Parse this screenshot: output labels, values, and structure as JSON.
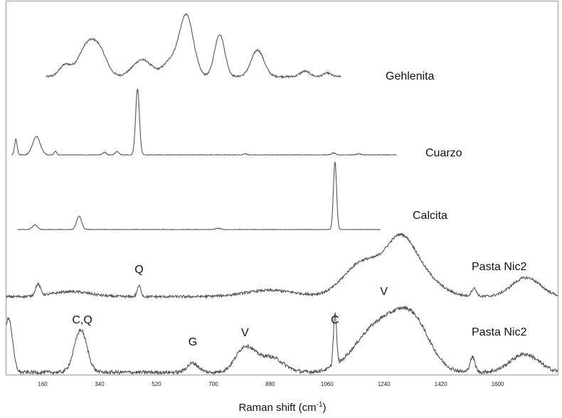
{
  "chart_data": {
    "type": "line",
    "title": "",
    "xlabel": {
      "main": "Raman shift (cm",
      "sup": "-1",
      "end": ")"
    },
    "ylabel": "",
    "xlim": [
      45,
      1790
    ],
    "x_ticks": [
      160,
      340,
      520,
      700,
      880,
      1060,
      1240,
      1420,
      1600
    ],
    "grid": false,
    "line_color": "#555555",
    "series": [
      {
        "name": "Gehlenita",
        "x_range": [
          170,
          1105
        ],
        "baseline": 0.12,
        "noise": 0.015,
        "peaks": [
          [
            230,
            0.18,
            18
          ],
          [
            305,
            0.55,
            30
          ],
          [
            345,
            0.25,
            22
          ],
          [
            475,
            0.28,
            30
          ],
          [
            565,
            0.25,
            24
          ],
          [
            615,
            1.0,
            22
          ],
          [
            720,
            0.7,
            16
          ],
          [
            840,
            0.44,
            20
          ],
          [
            990,
            0.09,
            15
          ],
          [
            1060,
            0.06,
            12
          ]
        ]
      },
      {
        "name": "Cuarzo",
        "x_range": [
          60,
          1280
        ],
        "baseline": 0.0,
        "noise": 0.006,
        "peaks": [
          [
            75,
            0.24,
            4
          ],
          [
            140,
            0.28,
            12
          ],
          [
            200,
            0.06,
            4
          ],
          [
            355,
            0.04,
            6
          ],
          [
            395,
            0.05,
            6
          ],
          [
            460,
            1.0,
            6
          ],
          [
            800,
            0.02,
            5
          ],
          [
            1080,
            0.03,
            6
          ],
          [
            1160,
            0.02,
            6
          ]
        ]
      },
      {
        "name": "Calcita",
        "x_range": [
          80,
          1230
        ],
        "baseline": 0.0,
        "noise": 0.005,
        "peaks": [
          [
            135,
            0.07,
            8
          ],
          [
            275,
            0.2,
            8
          ],
          [
            715,
            0.02,
            8
          ],
          [
            1085,
            1.0,
            5
          ]
        ]
      },
      {
        "name": "Pasta Nic2",
        "x_range": [
          45,
          1790
        ],
        "baseline": 0.03,
        "noise": 0.02,
        "peaks": [
          [
            145,
            0.18,
            8
          ],
          [
            250,
            0.08,
            60
          ],
          [
            465,
            0.17,
            6
          ],
          [
            880,
            0.1,
            80
          ],
          [
            1175,
            0.55,
            60
          ],
          [
            1290,
            0.68,
            45
          ],
          [
            1350,
            0.35,
            60
          ],
          [
            1525,
            0.13,
            8
          ],
          [
            1690,
            0.3,
            45
          ]
        ]
      },
      {
        "name": "Pasta Nic2",
        "x_range": [
          45,
          1790
        ],
        "baseline": 0.05,
        "noise": 0.03,
        "peaks": [
          [
            52,
            0.9,
            12
          ],
          [
            280,
            0.7,
            20
          ],
          [
            635,
            0.15,
            18
          ],
          [
            800,
            0.4,
            30
          ],
          [
            880,
            0.25,
            40
          ],
          [
            1085,
            0.85,
            5
          ],
          [
            1220,
            0.75,
            70
          ],
          [
            1330,
            0.78,
            55
          ],
          [
            1520,
            0.25,
            8
          ],
          [
            1685,
            0.3,
            45
          ]
        ]
      }
    ],
    "annotations": [
      {
        "text": "Q",
        "x": 465,
        "series": 3
      },
      {
        "text": "V",
        "x": 1240,
        "series": 3
      },
      {
        "text": "C,Q",
        "x": 285,
        "series": 4
      },
      {
        "text": "G",
        "x": 635,
        "series": 4
      },
      {
        "text": "V",
        "x": 800,
        "series": 4
      },
      {
        "text": "C",
        "x": 1085,
        "series": 4
      }
    ]
  }
}
